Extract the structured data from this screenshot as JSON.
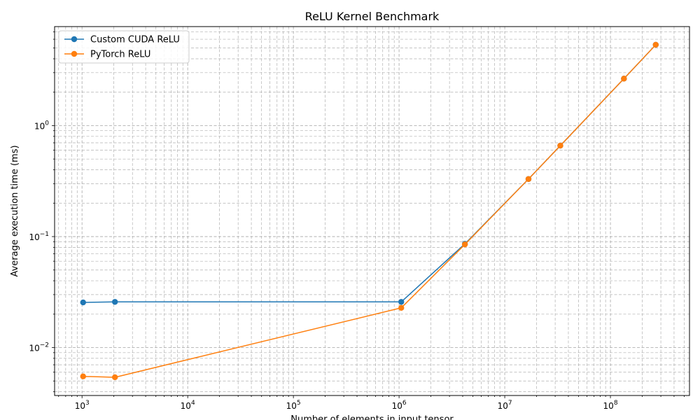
{
  "chart_data": {
    "type": "line",
    "title": "ReLU Kernel Benchmark",
    "xlabel": "Number of elements in input tensor",
    "ylabel": "Average execution time (ms)",
    "xscale": "log",
    "yscale": "log",
    "xlim": [
      550,
      560000000
    ],
    "ylim": [
      0.0037,
      7.8
    ],
    "x": [
      1024,
      2048,
      1048576,
      4194304,
      16777216,
      33554432,
      134217728,
      268435456
    ],
    "series": [
      {
        "name": "Custom CUDA ReLU",
        "color": "#1f77b4",
        "marker": "circle",
        "values": [
          0.0255,
          0.0258,
          0.0258,
          0.086,
          0.33,
          0.66,
          2.65,
          5.35
        ]
      },
      {
        "name": "PyTorch ReLU",
        "color": "#ff7f0e",
        "marker": "circle",
        "values": [
          0.0055,
          0.0054,
          0.0228,
          0.085,
          0.33,
          0.66,
          2.65,
          5.35
        ]
      }
    ],
    "x_ticks": [
      {
        "value": 1000,
        "base": "10",
        "exp": "3"
      },
      {
        "value": 10000,
        "base": "10",
        "exp": "4"
      },
      {
        "value": 100000,
        "base": "10",
        "exp": "5"
      },
      {
        "value": 1000000,
        "base": "10",
        "exp": "6"
      },
      {
        "value": 10000000,
        "base": "10",
        "exp": "7"
      },
      {
        "value": 100000000,
        "base": "10",
        "exp": "8"
      }
    ],
    "y_ticks": [
      {
        "value": 0.01,
        "base": "10",
        "exp": "−2"
      },
      {
        "value": 0.1,
        "base": "10",
        "exp": "−1"
      },
      {
        "value": 1,
        "base": "10",
        "exp": "0"
      }
    ],
    "grid": true,
    "minor_grid": true,
    "legend_position": "top-left"
  }
}
